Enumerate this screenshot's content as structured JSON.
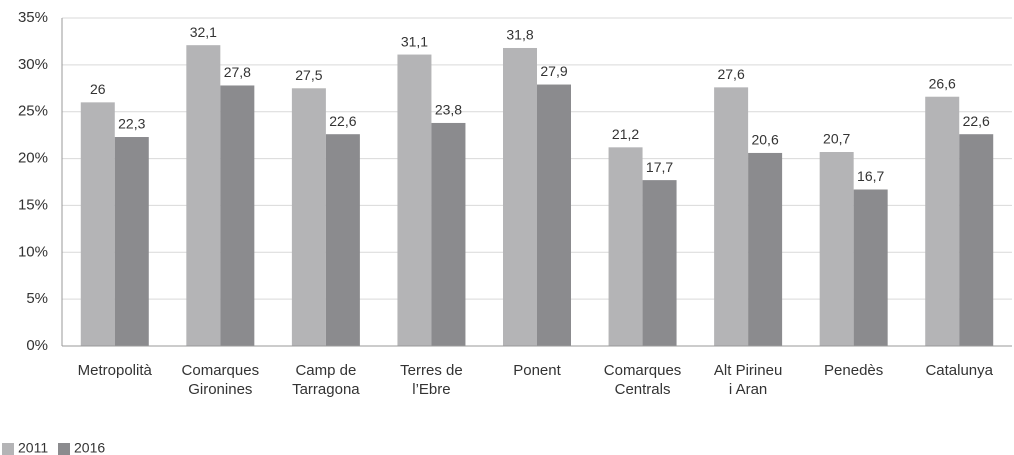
{
  "chart_data": {
    "type": "bar",
    "categories": [
      "Metropolità",
      "Comarques\nGironines",
      "Camp de\nTarragona",
      "Terres de\nl’Ebre",
      "Ponent",
      "Comarques\nCentrals",
      "Alt Pirineu\ni Aran",
      "Penedès",
      "Catalunya"
    ],
    "series": [
      {
        "name": "2011",
        "color": "#b4b4b6",
        "values": [
          26,
          32.1,
          27.5,
          31.1,
          31.8,
          21.2,
          27.6,
          20.7,
          26.6
        ],
        "value_labels": [
          "26",
          "32,1",
          "27,5",
          "31,1",
          "31,8",
          "21,2",
          "27,6",
          "20,7",
          "26,6"
        ]
      },
      {
        "name": "2016",
        "color": "#8b8b8e",
        "values": [
          22.3,
          27.8,
          22.6,
          23.8,
          27.9,
          17.7,
          20.6,
          16.7,
          22.6
        ],
        "value_labels": [
          "22,3",
          "27,8",
          "22,6",
          "23,8",
          "27,9",
          "17,7",
          "20,6",
          "16,7",
          "22,6"
        ]
      }
    ],
    "ylim": [
      0,
      35
    ],
    "yticks": [
      {
        "value": 0,
        "label": "0%"
      },
      {
        "value": 5,
        "label": "5%"
      },
      {
        "value": 10,
        "label": "10%"
      },
      {
        "value": 15,
        "label": "15%"
      },
      {
        "value": 20,
        "label": "20%"
      },
      {
        "value": 25,
        "label": "25%"
      },
      {
        "value": 30,
        "label": "30%"
      },
      {
        "value": 35,
        "label": "35%"
      }
    ],
    "grid": true,
    "legend": "bottom-left"
  }
}
